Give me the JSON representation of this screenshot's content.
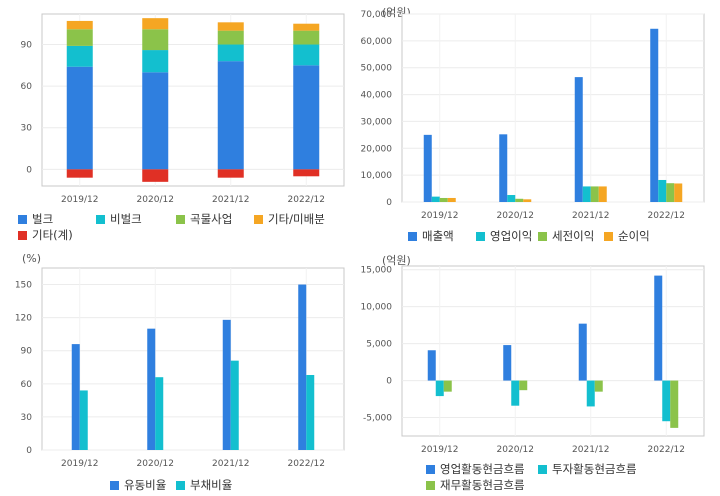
{
  "colors": {
    "blue": "#2f7fdf",
    "cyan": "#13bfcf",
    "green": "#8bc34a",
    "orange": "#f5a623",
    "red": "#e03025"
  },
  "chart_data": [
    {
      "id": "c1",
      "type": "bar",
      "stacked": true,
      "unit": "",
      "categories": [
        "2019/12",
        "2020/12",
        "2021/12",
        "2022/12"
      ],
      "ylim": [
        -12,
        112
      ],
      "yticks": [
        "0",
        "30",
        "60",
        "90"
      ],
      "ytick_values": [
        0,
        30,
        60,
        90
      ],
      "series": [
        {
          "name": "벌크",
          "color": "#2f7fdf",
          "values": [
            74,
            70,
            78,
            75
          ]
        },
        {
          "name": "비벌크",
          "color": "#13bfcf",
          "values": [
            15,
            16,
            12,
            15
          ]
        },
        {
          "name": "곡물사업",
          "color": "#8bc34a",
          "values": [
            12,
            15,
            10,
            10
          ]
        },
        {
          "name": "기타/미배분",
          "color": "#f5a623",
          "values": [
            6,
            8,
            6,
            5
          ]
        },
        {
          "name": "기타(계)",
          "color": "#e03025",
          "values": [
            -6,
            -9,
            -6,
            -5
          ]
        }
      ],
      "grid": true
    },
    {
      "id": "c2",
      "type": "bar",
      "unit": "(억원)",
      "categories": [
        "2019/12",
        "2020/12",
        "2021/12",
        "2022/12"
      ],
      "ylim": [
        0,
        70000
      ],
      "yticks": [
        "0",
        "10,000",
        "20,000",
        "30,000",
        "40,000",
        "50,000",
        "60,000",
        "70,000"
      ],
      "ytick_values": [
        0,
        10000,
        20000,
        30000,
        40000,
        50000,
        60000,
        70000
      ],
      "series": [
        {
          "name": "매출액",
          "color": "#2f7fdf",
          "values": [
            25000,
            25200,
            46500,
            64500
          ]
        },
        {
          "name": "영업이익",
          "color": "#13bfcf",
          "values": [
            2000,
            2600,
            5800,
            8200
          ]
        },
        {
          "name": "세전이익",
          "color": "#8bc34a",
          "values": [
            1500,
            1200,
            5800,
            7000
          ]
        },
        {
          "name": "순이익",
          "color": "#f5a623",
          "values": [
            1500,
            1000,
            5800,
            6900
          ]
        }
      ],
      "grid": true
    },
    {
      "id": "c3",
      "type": "bar",
      "unit": "(%)",
      "categories": [
        "2019/12",
        "2020/12",
        "2021/12",
        "2022/12"
      ],
      "ylim": [
        0,
        165
      ],
      "yticks": [
        "0",
        "30",
        "60",
        "90",
        "120",
        "150"
      ],
      "ytick_values": [
        0,
        30,
        60,
        90,
        120,
        150
      ],
      "series": [
        {
          "name": "유동비율",
          "color": "#2f7fdf",
          "values": [
            96,
            110,
            118,
            150
          ]
        },
        {
          "name": "부채비율",
          "color": "#13bfcf",
          "values": [
            54,
            66,
            81,
            68
          ]
        }
      ],
      "grid": true
    },
    {
      "id": "c4",
      "type": "bar",
      "unit": "(억원)",
      "categories": [
        "2019/12",
        "2020/12",
        "2021/12",
        "2022/12"
      ],
      "ylim": [
        -7500,
        15500
      ],
      "yticks": [
        "-5,000",
        "0",
        "5,000",
        "10,000",
        "15,000"
      ],
      "ytick_values": [
        -5000,
        0,
        5000,
        10000,
        15000
      ],
      "series": [
        {
          "name": "영업활동현금흐름",
          "color": "#2f7fdf",
          "values": [
            4100,
            4800,
            7700,
            14200
          ]
        },
        {
          "name": "투자활동현금흐름",
          "color": "#13bfcf",
          "values": [
            -2100,
            -3400,
            -3500,
            -5500
          ]
        },
        {
          "name": "재무활동현금흐름",
          "color": "#8bc34a",
          "values": [
            -1500,
            -1300,
            -1500,
            -6400
          ]
        }
      ],
      "grid": true
    }
  ]
}
